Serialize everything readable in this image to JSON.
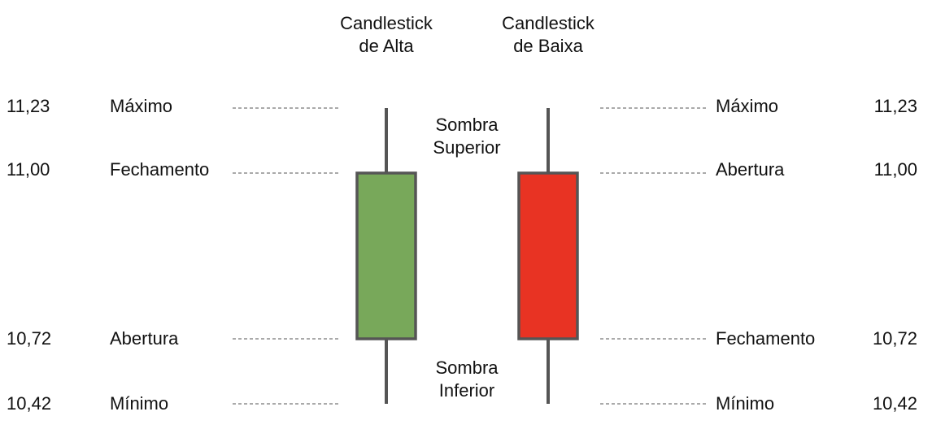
{
  "titles": {
    "bull": [
      "Candlestick",
      "de Alta"
    ],
    "bear": [
      "Candlestick",
      "de Baixa"
    ]
  },
  "shadows": {
    "upper": [
      "Sombra",
      "Superior"
    ],
    "lower": [
      "Sombra",
      "Inferior"
    ]
  },
  "left_labels": [
    {
      "value": "11,23",
      "label": "Máximo"
    },
    {
      "value": "11,00",
      "label": "Fechamento"
    },
    {
      "value": "10,72",
      "label": "Abertura"
    },
    {
      "value": "10,42",
      "label": "Mínimo"
    }
  ],
  "right_labels": [
    {
      "value": "11,23",
      "label": "Máximo"
    },
    {
      "value": "11,00",
      "label": "Abertura"
    },
    {
      "value": "10,72",
      "label": "Fechamento"
    },
    {
      "value": "10,42",
      "label": "Mínimo"
    }
  ],
  "candles": {
    "bull": {
      "open": 10.72,
      "close": 11.0,
      "high": 11.23,
      "low": 10.42,
      "color": "#78a85a"
    },
    "bear": {
      "open": 11.0,
      "close": 10.72,
      "high": 11.23,
      "low": 10.42,
      "color": "#e83323"
    }
  }
}
